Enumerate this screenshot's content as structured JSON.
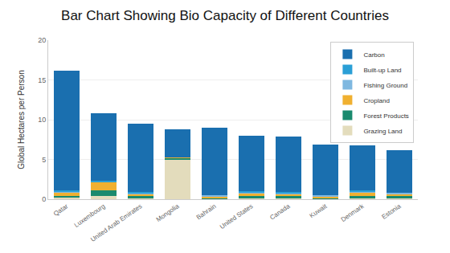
{
  "chart_data": {
    "type": "bar",
    "title": "Bar Chart Showing Bio Capacity of Different Countries",
    "y_label": "Global Hectares per Person",
    "categories": [
      "Qatar",
      "Luxembourg",
      "United Arab Emirates",
      "Mongolia",
      "Bahrain",
      "United States",
      "Canada",
      "Kuwait",
      "Denmark",
      "Estonia"
    ],
    "stacked": true,
    "grid": true,
    "legend": "upper right",
    "ylim": [
      0,
      20
    ],
    "yticks": [
      0,
      5,
      10,
      15,
      20
    ],
    "series": [
      {
        "name": "Grazing Land",
        "color": "#e3dcbc",
        "values": [
          0.3,
          0.4,
          0.2,
          5.0,
          0.1,
          0.2,
          0.2,
          0.1,
          0.2,
          0.1
        ]
      },
      {
        "name": "Forest Products",
        "color": "#1a8a6e",
        "values": [
          0.1,
          0.7,
          0.2,
          0.2,
          0.1,
          0.2,
          0.2,
          0.1,
          0.2,
          0.4
        ]
      },
      {
        "name": "Cropland",
        "color": "#f0b030",
        "values": [
          0.5,
          1.1,
          0.3,
          0.1,
          0.2,
          0.4,
          0.3,
          0.2,
          0.5,
          0.2
        ]
      },
      {
        "name": "Fishing Ground",
        "color": "#7fb8e0",
        "values": [
          0.1,
          0.0,
          0.1,
          0.0,
          0.1,
          0.1,
          0.1,
          0.1,
          0.1,
          0.1
        ]
      },
      {
        "name": "Built-up Land",
        "color": "#2a9fd6",
        "values": [
          0.1,
          0.1,
          0.1,
          0.0,
          0.0,
          0.1,
          0.1,
          0.0,
          0.1,
          0.0
        ]
      },
      {
        "name": "Carbon",
        "color": "#1a6faf",
        "values": [
          15.1,
          8.5,
          8.6,
          3.5,
          8.5,
          7.0,
          7.0,
          6.4,
          5.7,
          5.4
        ]
      }
    ]
  }
}
